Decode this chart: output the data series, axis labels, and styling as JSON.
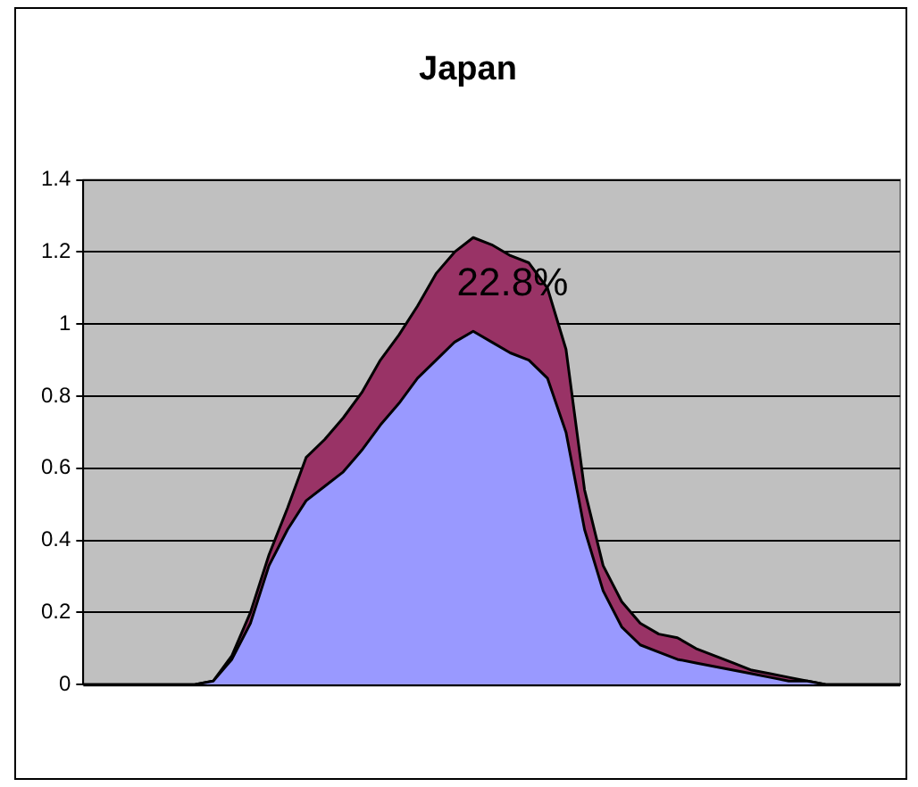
{
  "chart_data": {
    "type": "area",
    "title": "Japan",
    "stacked": true,
    "categories": [
      null,
      null,
      null,
      null,
      null,
      null,
      null,
      null,
      null,
      null,
      null,
      null,
      null,
      null,
      null,
      null,
      null,
      null,
      null,
      null,
      null,
      null,
      null,
      null,
      null,
      null,
      null,
      null,
      null,
      null,
      null,
      null,
      null,
      null,
      null,
      null,
      null,
      null,
      null,
      null,
      null,
      null,
      null,
      null,
      null
    ],
    "series": [
      {
        "color": "#9999ff",
        "values": [
          0,
          0,
          0,
          0,
          0,
          0,
          0,
          0.01,
          0.07,
          0.17,
          0.33,
          0.43,
          0.51,
          0.55,
          0.59,
          0.65,
          0.72,
          0.78,
          0.85,
          0.9,
          0.95,
          0.98,
          0.95,
          0.92,
          0.9,
          0.85,
          0.7,
          0.43,
          0.26,
          0.16,
          0.11,
          0.09,
          0.07,
          0.06,
          0.05,
          0.04,
          0.03,
          0.02,
          0.01,
          0.01,
          0,
          0,
          0,
          0,
          0
        ]
      },
      {
        "color": "#993366",
        "values": [
          0,
          0,
          0,
          0,
          0,
          0,
          0,
          0,
          0.01,
          0.03,
          0.03,
          0.06,
          0.12,
          0.13,
          0.15,
          0.16,
          0.18,
          0.19,
          0.2,
          0.24,
          0.25,
          0.26,
          0.27,
          0.27,
          0.27,
          0.25,
          0.23,
          0.11,
          0.07,
          0.07,
          0.06,
          0.05,
          0.06,
          0.04,
          0.03,
          0.02,
          0.01,
          0.01,
          0.01,
          0,
          0,
          0,
          0,
          0,
          0
        ]
      }
    ],
    "ylim": [
      0,
      1.4
    ],
    "yticks": [
      0,
      0.2,
      0.4,
      0.6,
      0.8,
      1,
      1.2,
      1.4
    ],
    "grid": "y",
    "legend": false,
    "annotations": [
      "22.8%"
    ]
  }
}
